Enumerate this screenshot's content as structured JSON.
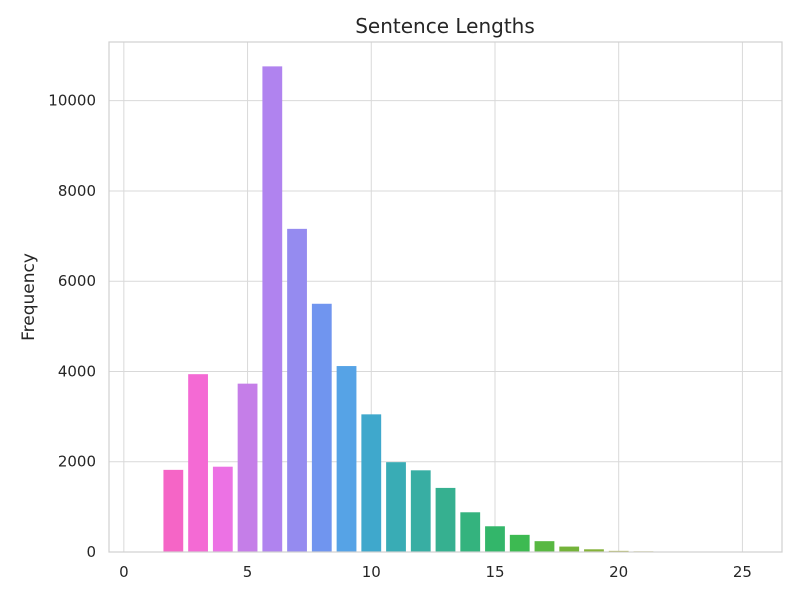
{
  "chart_data": {
    "type": "bar",
    "title": "Sentence Lengths",
    "xlabel": "",
    "ylabel": "Frequency",
    "xlim": [
      -0.6,
      26.6
    ],
    "ylim": [
      0,
      11300
    ],
    "x_ticks": [
      0,
      5,
      10,
      15,
      20,
      25
    ],
    "y_ticks": [
      0,
      2000,
      4000,
      6000,
      8000,
      10000
    ],
    "grid": true,
    "x": [
      1,
      2,
      3,
      4,
      5,
      6,
      7,
      8,
      9,
      10,
      11,
      12,
      13,
      14,
      15,
      16,
      17,
      18,
      19,
      20,
      21,
      22,
      23,
      24,
      25,
      26
    ],
    "values": [
      10,
      1820,
      3940,
      1890,
      3730,
      10760,
      7160,
      5500,
      4120,
      3050,
      1990,
      1810,
      1420,
      880,
      570,
      380,
      240,
      120,
      60,
      25,
      15,
      10,
      8,
      6,
      5,
      4
    ],
    "colors": [
      "#f75fb3",
      "#f565c6",
      "#f46ad4",
      "#ec72e4",
      "#c57ee8",
      "#b083ef",
      "#958bf0",
      "#7095ef",
      "#56a3e6",
      "#3fa8cc",
      "#39acb5",
      "#38aea3",
      "#36b090",
      "#34b37e",
      "#33b66a",
      "#3dba52",
      "#58b842",
      "#74b33a",
      "#85b23a",
      "#a7b040",
      "#b5ad3c",
      "#c4a83a",
      "#cfa43a",
      "#d89f3c",
      "#e29a3e",
      "#eb9542"
    ]
  }
}
